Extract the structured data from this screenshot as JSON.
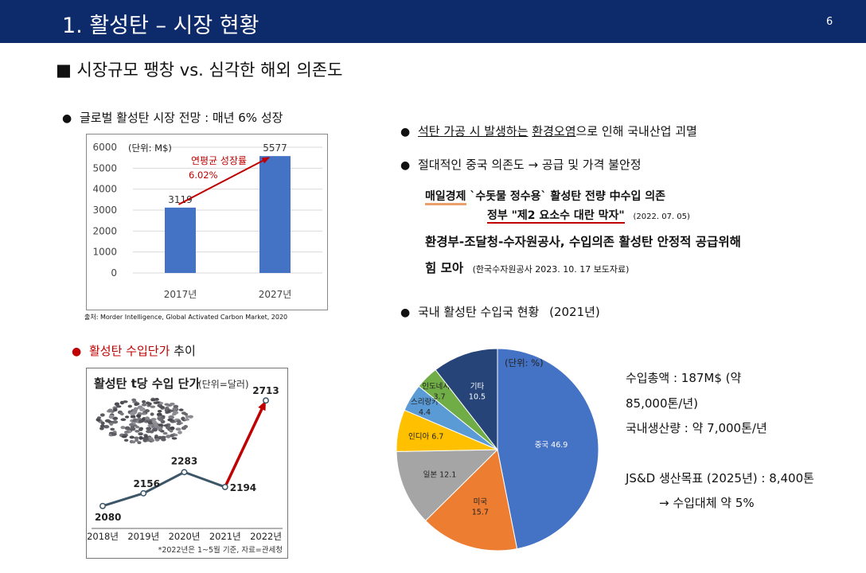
{
  "header": {
    "title": "1.  활성탄 – 시장 현황",
    "page": "6"
  },
  "heading": "■ 시장규모 팽창 vs. 심각한 해외 의존도",
  "left": {
    "bullet1": "글로벌 활성탄 시장 전망 : 매년 6% 성장",
    "bar_unit": "(단위: M$)",
    "cagr_label": "연평균 성장률",
    "cagr_value": "6.02%",
    "source": "출처: Morder Intelligence, Global Activated Carbon Market, 2020",
    "bullet2_main": "활성탄 수입단가",
    "bullet2_tail": " 추이",
    "price_title": "활성탄 t당 수입 단가",
    "price_unit": "(단위=달러)",
    "price_note": "*2022년은 1~5월 기준, 자료=관세청",
    "granules_image": "activated-carbon-granules"
  },
  "right": {
    "b1_underlined_1": "석탄 가공 시 발생하는",
    "b1_underlined_2": "환경오염",
    "b1_rest": "으로 인해 국내산업 괴멸",
    "b2": "절대적인 중국 의존도 → 공급 및 가격 불안정",
    "news_source": "매일경제",
    "news_line1": " `수돗물 정수용` 활성탄 전량 中수입 의존",
    "news_line2": "정부 \"제2 요소수 대란 막자\"",
    "news_date": "(2022. 07. 05)",
    "gov_line1": "환경부-조달청-수자원공사, 수입의존 활성탄 안정적 공급위해",
    "gov_line2": "힘 모아",
    "gov_ref": "(한국수자원공사 2023. 10. 17 보도자료)",
    "b3": "국내 활성탄 수입국 현황",
    "b3_year": "(2021년)",
    "pie_unit": "(단위: %)",
    "stats": {
      "total_1": "수입총액 : 187M$ (약",
      "total_2": "85,000톤/년)",
      "domestic": "국내생산량 : 약 7,000톤/년",
      "target": "JS&D 생산목표 (2025년) : 8,400톤",
      "replace": "→ 수입대체 약 5%"
    }
  },
  "chart_data": [
    {
      "type": "bar",
      "categories": [
        "2017년",
        "2027년"
      ],
      "values": [
        3119,
        5577
      ],
      "ylim": [
        0,
        6000
      ],
      "yticks": [
        0,
        1000,
        2000,
        3000,
        4000,
        5000,
        6000
      ],
      "grid": true,
      "color": "#4472c4"
    },
    {
      "type": "line",
      "x": [
        "2018년",
        "2019년",
        "2020년",
        "2021년",
        "2022년"
      ],
      "values": [
        2080,
        2156,
        2283,
        2194,
        2713
      ],
      "ylim": [
        1950,
        2800
      ],
      "line_color": "#3c5567",
      "highlight_color": "#c00000"
    },
    {
      "type": "pie",
      "labels": [
        "중국",
        "미국",
        "일본",
        "인디아",
        "스리랑카",
        "인도네시아",
        "기타"
      ],
      "values": [
        46.9,
        15.7,
        12.1,
        6.7,
        4.4,
        3.7,
        10.5
      ],
      "colors": [
        "#4472c4",
        "#ed7d31",
        "#a5a5a5",
        "#ffc000",
        "#5b9bd5",
        "#70ad47",
        "#264478"
      ]
    }
  ]
}
